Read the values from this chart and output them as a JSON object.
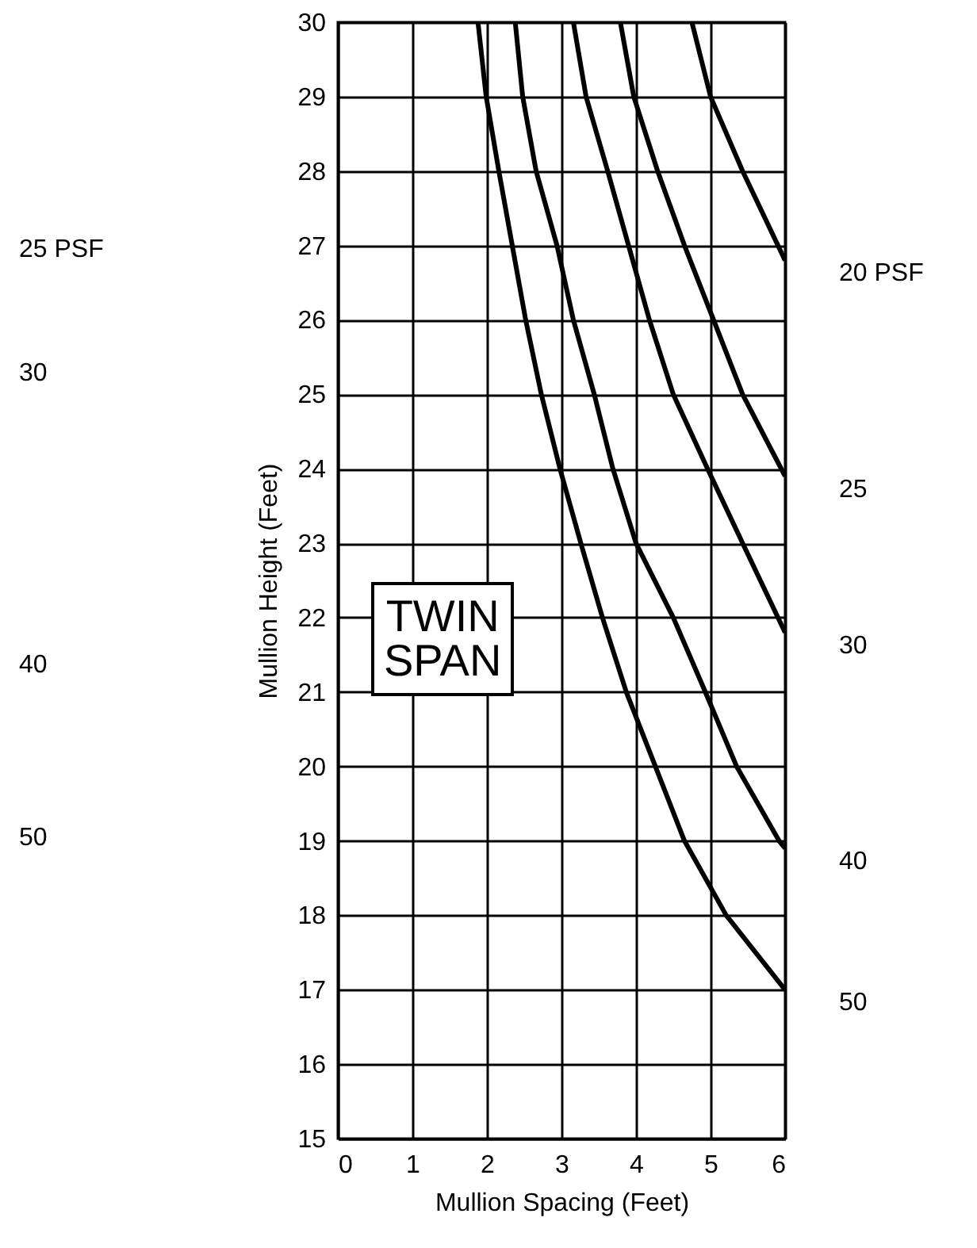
{
  "chart_data": {
    "type": "line",
    "xlabel": "Mullion Spacing (Feet)",
    "ylabel": "Mullion Height (Feet)",
    "xlim": [
      0,
      6
    ],
    "ylim": [
      15,
      30
    ],
    "xticks": [
      0,
      1,
      2,
      3,
      4,
      5,
      6
    ],
    "yticks": [
      15,
      16,
      17,
      18,
      19,
      20,
      21,
      22,
      23,
      24,
      25,
      26,
      27,
      28,
      29,
      30
    ],
    "grid": true,
    "marker": "none",
    "line_style": "solid",
    "series": [
      {
        "name": "20 PSF",
        "color": "#000000",
        "x": [
          4.75,
          5.0,
          5.43,
          6
        ],
        "values": [
          30,
          29,
          28,
          26.8
        ]
      },
      {
        "name": "25",
        "color": "#000000",
        "x": [
          3.79,
          3.97,
          4.29,
          4.65,
          5.04,
          5.43,
          6
        ],
        "values": [
          30,
          29,
          28,
          27,
          26,
          25,
          23.9
        ]
      },
      {
        "name": "30",
        "color": "#000000",
        "x": [
          3.16,
          3.33,
          3.62,
          3.9,
          4.18,
          4.5,
          4.96,
          5.43,
          6
        ],
        "values": [
          30,
          29,
          28,
          27,
          26,
          25,
          24,
          23,
          21.8
        ]
      },
      {
        "name": "40",
        "color": "#000000",
        "x": [
          2.38,
          2.48,
          2.66,
          2.94,
          3.16,
          3.44,
          3.69,
          4.0,
          4.5,
          4.93,
          5.35,
          5.92,
          6
        ],
        "values": [
          30,
          29,
          28,
          27,
          26,
          25,
          24,
          23,
          22,
          21,
          20,
          19,
          18.9
        ]
      },
      {
        "name": "50",
        "color": "#000000",
        "x": [
          1.88,
          1.99,
          2.16,
          2.34,
          2.52,
          2.73,
          2.98,
          3.26,
          3.55,
          3.87,
          4.26,
          4.65,
          5.21,
          6
        ],
        "values": [
          30,
          29,
          28,
          27,
          26,
          25,
          24,
          23,
          22,
          21,
          20,
          19,
          18,
          17
        ]
      }
    ],
    "annotations": [
      "TWIN SPAN",
      "25 PSF",
      "30",
      "40",
      "50"
    ]
  }
}
